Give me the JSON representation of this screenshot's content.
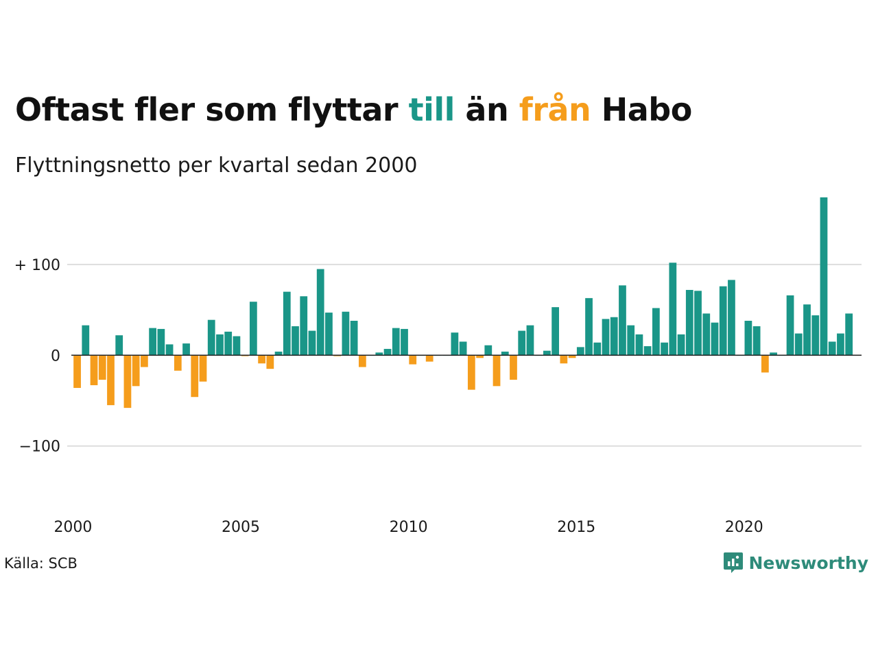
{
  "header": {
    "title_parts": [
      "Oftast fler som flyttar ",
      "till",
      " än ",
      "från",
      " Habo"
    ],
    "subtitle": "Flyttningsnetto per kvartal sedan 2000"
  },
  "footer": {
    "source": "Källa: SCB",
    "brand": "Newsworthy",
    "brand_icon": "newsworthy-logo-icon"
  },
  "colors": {
    "positive": "#1a9688",
    "negative": "#f59d1c",
    "gridline": "#dddddd",
    "baseline": "#222222",
    "brand": "#2e8b7a"
  },
  "chart_data": {
    "type": "bar",
    "title": "Oftast fler som flyttar till än från Habo",
    "subtitle": "Flyttningsnetto per kvartal sedan 2000",
    "xlabel": "",
    "ylabel": "",
    "x_start": 2000,
    "x_step": 0.25,
    "x_ticks": [
      2000,
      2005,
      2010,
      2015,
      2020
    ],
    "x_tick_labels": [
      "2000",
      "2005",
      "2010",
      "2015",
      "2020"
    ],
    "y_ticks": [
      -100,
      0,
      100
    ],
    "y_tick_labels": [
      "−100",
      "0",
      "+ 100"
    ],
    "ylim": [
      -175,
      180
    ],
    "xlim": [
      1999.95,
      2023.5
    ],
    "grid": true,
    "values": [
      -36,
      33,
      -33,
      -27,
      -55,
      22,
      -58,
      -34,
      -13,
      30,
      29,
      12,
      -17,
      13,
      -46,
      -29,
      39,
      23,
      26,
      21,
      -1,
      59,
      -9,
      -15,
      4,
      70,
      32,
      65,
      27,
      95,
      47,
      -1,
      48,
      38,
      -13,
      0,
      3,
      7,
      30,
      29,
      -10,
      0,
      -7,
      0,
      0,
      25,
      15,
      -38,
      -3,
      11,
      -34,
      4,
      -27,
      27,
      33,
      0,
      5,
      53,
      -9,
      -3,
      9,
      63,
      14,
      40,
      42,
      77,
      33,
      23,
      10,
      52,
      14,
      102,
      23,
      72,
      71,
      46,
      36,
      76,
      83,
      0,
      38,
      32,
      -19,
      3,
      0,
      66,
      24,
      56,
      44,
      174,
      15,
      24,
      46
    ]
  }
}
